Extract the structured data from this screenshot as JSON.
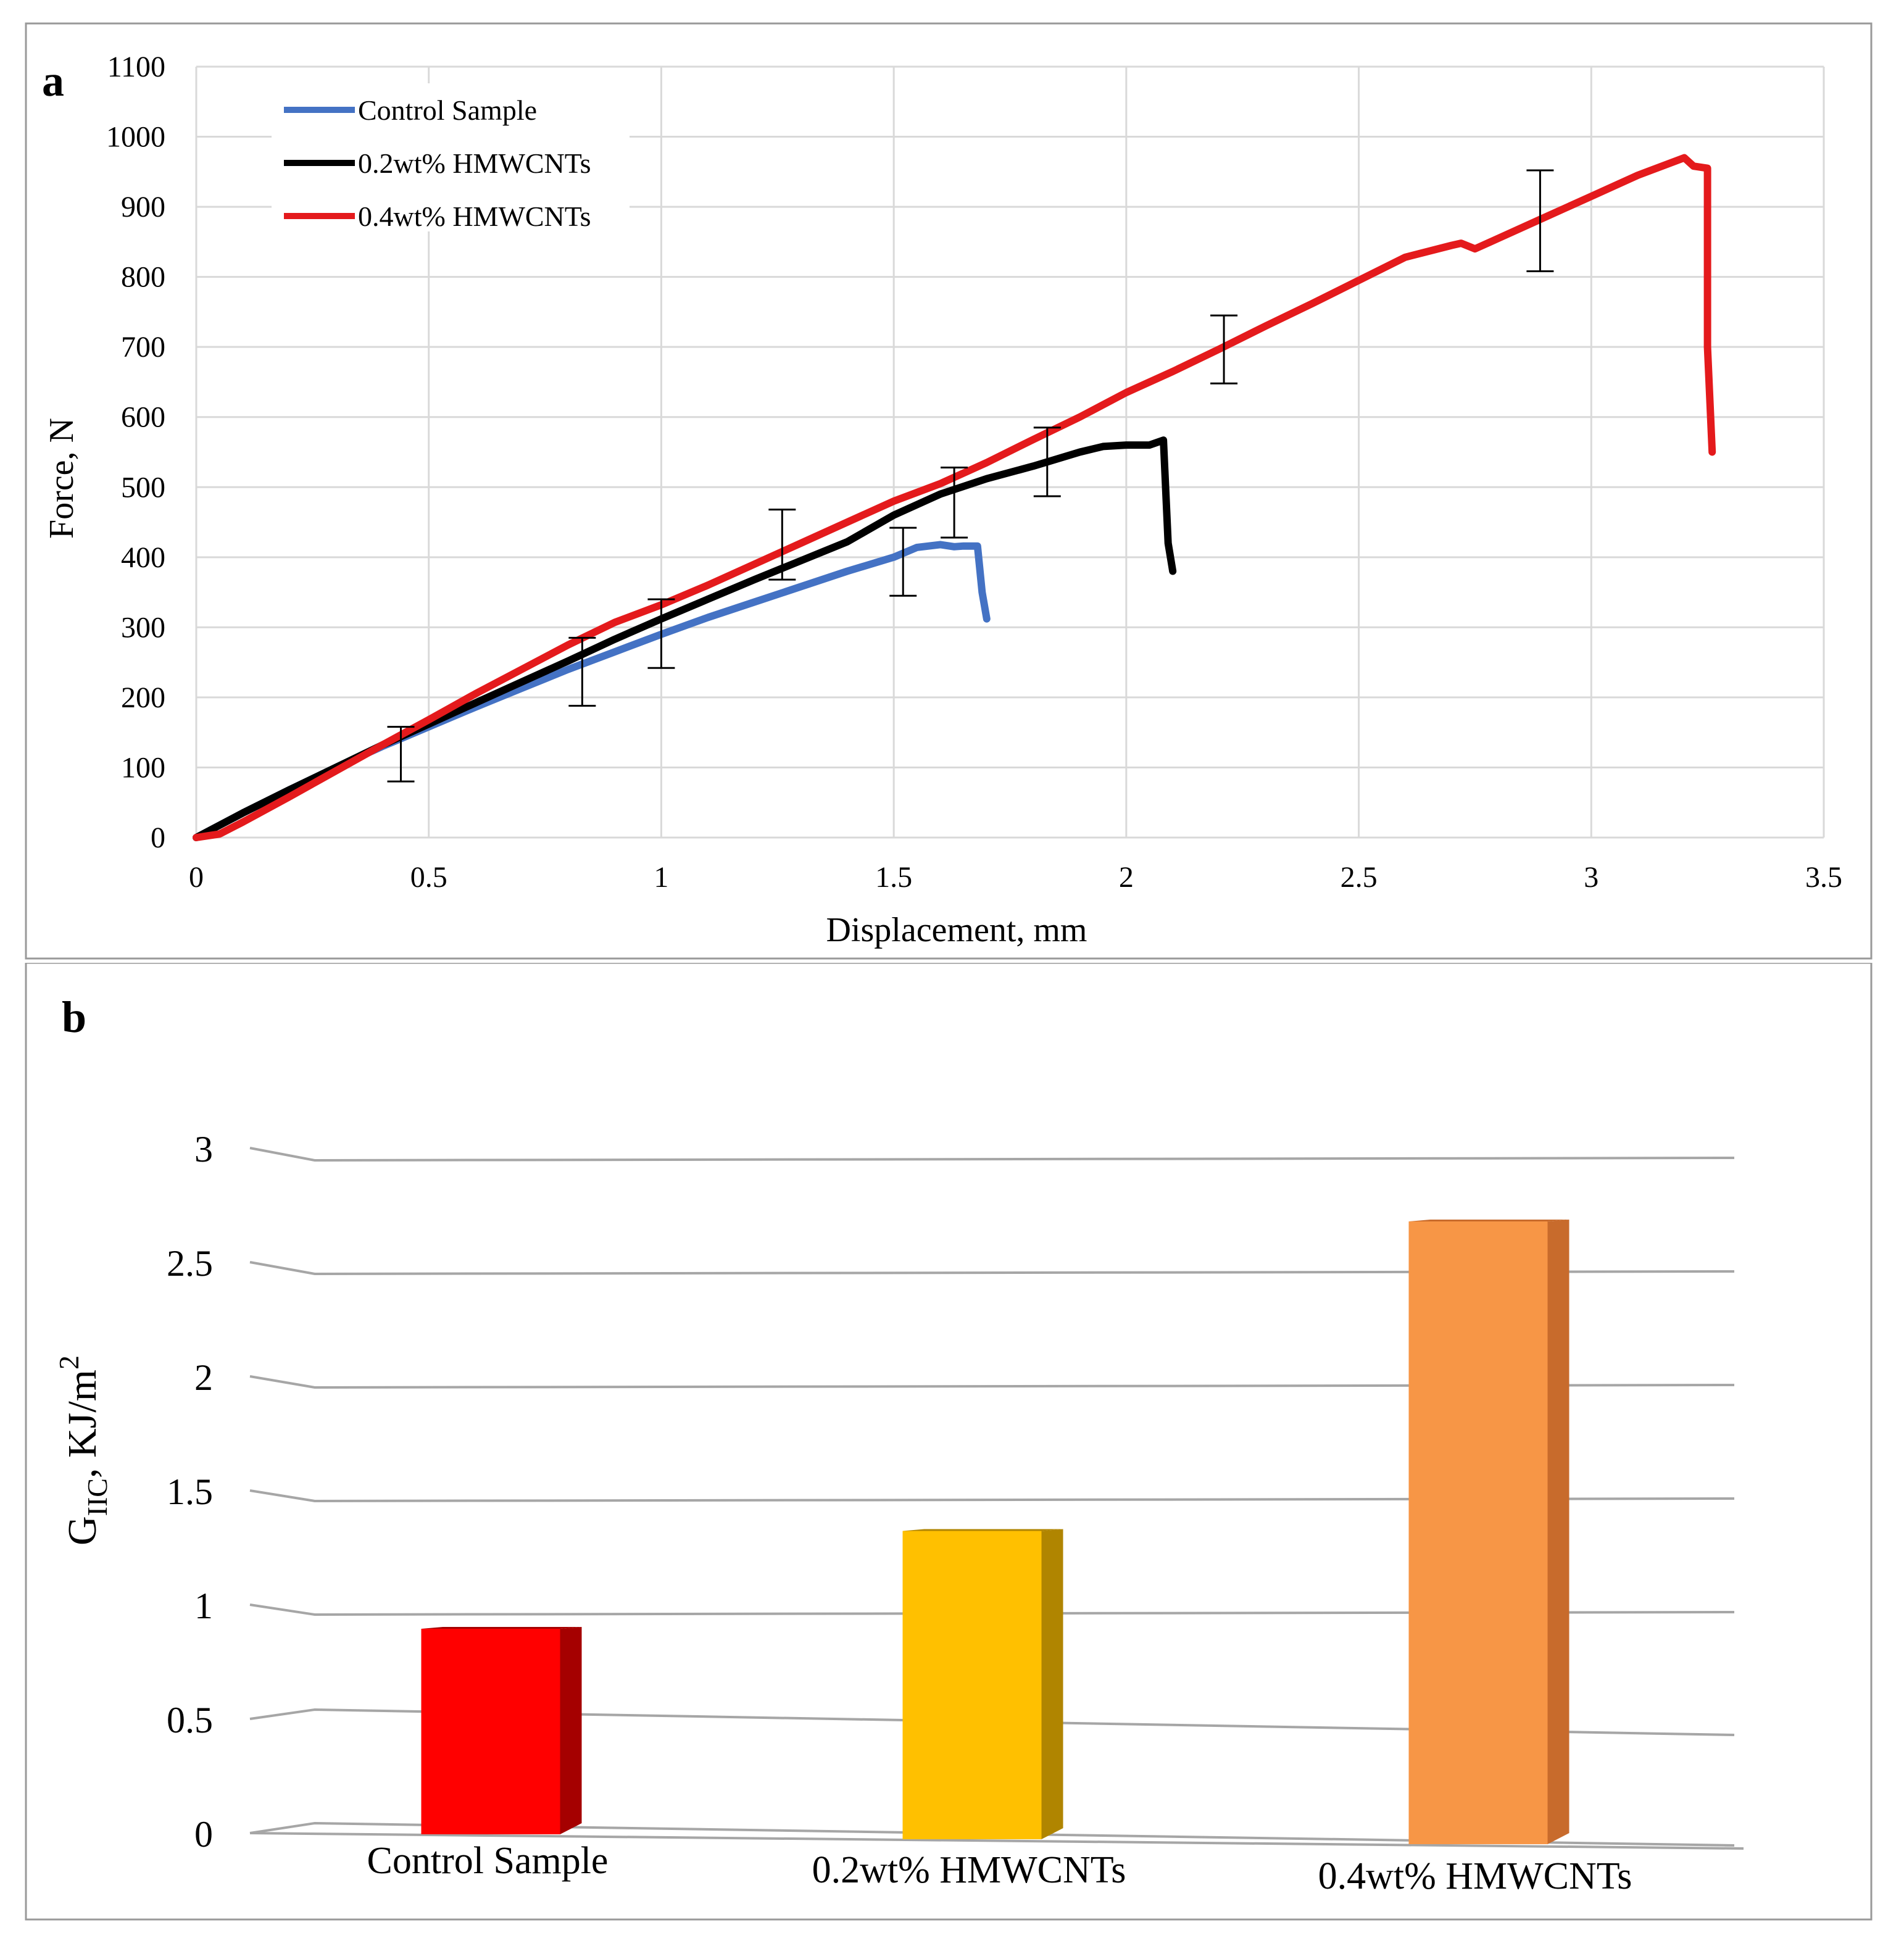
{
  "panel_a": {
    "label": "a"
  },
  "panel_b": {
    "label": "b"
  },
  "chart_data": [
    {
      "type": "line",
      "xlabel": "Displacement, mm",
      "ylabel": "Force, N",
      "xlim": [
        0,
        3.5
      ],
      "ylim": [
        0,
        1100
      ],
      "xticks": [
        "0",
        "0.5",
        "1",
        "1.5",
        "2",
        "2.5",
        "3",
        "3.5"
      ],
      "yticks": [
        "0",
        "100",
        "200",
        "300",
        "400",
        "500",
        "600",
        "700",
        "800",
        "900",
        "1000",
        "1100"
      ],
      "grid": true,
      "legend_position": "top-left",
      "series": [
        {
          "name": "Control Sample",
          "color": "#4472C4",
          "x": [
            0,
            0.1,
            0.2,
            0.3,
            0.4,
            0.5,
            0.6,
            0.7,
            0.8,
            0.9,
            1.0,
            1.1,
            1.2,
            1.3,
            1.4,
            1.5,
            1.55,
            1.6,
            1.63,
            1.65,
            1.68,
            1.69,
            1.7
          ],
          "y": [
            0,
            35,
            68,
            100,
            130,
            158,
            186,
            213,
            240,
            265,
            290,
            314,
            336,
            358,
            380,
            400,
            414,
            418,
            415,
            416,
            416,
            350,
            312
          ]
        },
        {
          "name": "0.2wt% HMWCNTs",
          "color": "#000000",
          "x": [
            0,
            0.1,
            0.2,
            0.3,
            0.4,
            0.5,
            0.6,
            0.7,
            0.8,
            0.9,
            1.0,
            1.1,
            1.2,
            1.3,
            1.4,
            1.5,
            1.6,
            1.7,
            1.8,
            1.9,
            1.95,
            2.0,
            2.05,
            2.08,
            2.09,
            2.1
          ],
          "y": [
            0,
            35,
            68,
            100,
            132,
            162,
            192,
            222,
            252,
            283,
            312,
            340,
            368,
            395,
            422,
            460,
            490,
            512,
            530,
            550,
            558,
            560,
            560,
            567,
            420,
            380
          ]
        },
        {
          "name": "0.4wt% HMWCNTs",
          "color": "#E41A1C",
          "x": [
            0,
            0.05,
            0.1,
            0.2,
            0.3,
            0.4,
            0.5,
            0.6,
            0.7,
            0.8,
            0.9,
            1.0,
            1.1,
            1.2,
            1.3,
            1.4,
            1.5,
            1.6,
            1.7,
            1.8,
            1.9,
            2.0,
            2.1,
            2.2,
            2.3,
            2.4,
            2.5,
            2.6,
            2.7,
            2.72,
            2.75,
            2.8,
            2.9,
            3.0,
            3.1,
            3.2,
            3.22,
            3.25,
            3.25,
            3.26
          ],
          "y": [
            0,
            5,
            22,
            58,
            95,
            132,
            168,
            205,
            240,
            275,
            307,
            332,
            360,
            390,
            420,
            450,
            480,
            505,
            535,
            568,
            600,
            635,
            665,
            697,
            730,
            762,
            795,
            828,
            845,
            848,
            840,
            855,
            885,
            915,
            945,
            970,
            958,
            955,
            700,
            550
          ]
        }
      ],
      "error_bars": [
        {
          "x": 0.44,
          "low": 80,
          "high": 158
        },
        {
          "x": 0.83,
          "low": 188,
          "high": 285
        },
        {
          "x": 1.0,
          "low": 242,
          "high": 340
        },
        {
          "x": 1.26,
          "low": 368,
          "high": 468
        },
        {
          "x": 1.52,
          "low": 345,
          "high": 442
        },
        {
          "x": 1.63,
          "low": 428,
          "high": 528
        },
        {
          "x": 1.83,
          "low": 487,
          "high": 585
        },
        {
          "x": 2.21,
          "low": 648,
          "high": 745
        },
        {
          "x": 2.89,
          "low": 808,
          "high": 952
        }
      ]
    },
    {
      "type": "bar",
      "style": "3d",
      "categories": [
        "Control Sample",
        "0.2wt% HMWCNTs",
        "0.4wt% HMWCNTs"
      ],
      "values": [
        0.9,
        1.35,
        2.7
      ],
      "colors": [
        "#FF0000",
        "#FFC000",
        "#F79646"
      ],
      "side_colors": [
        "#A50000",
        "#B08500",
        "#C86B2C"
      ],
      "ylim": [
        0,
        3
      ],
      "yticks": [
        "0",
        "0.5",
        "1",
        "1.5",
        "2",
        "2.5",
        "3"
      ],
      "ylabel_main": "G",
      "ylabel_sub": "IIC",
      "ylabel_rest": ", KJ/m",
      "ylabel_sup": "2",
      "grid": true
    }
  ]
}
